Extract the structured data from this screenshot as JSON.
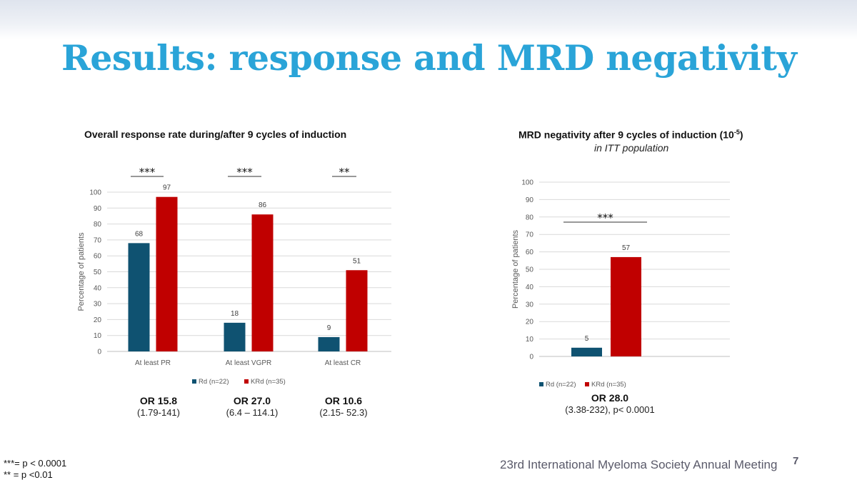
{
  "slide": {
    "title": "Results: response and MRD negativity",
    "footer": "23rd International Myeloma Society Annual Meeting",
    "page_number": "7",
    "footnotes": [
      "***= p < 0.0001",
      "** = p <0.01"
    ]
  },
  "colors": {
    "title": "#2aa4d8",
    "rd": "#0f5271",
    "krd": "#c00000"
  },
  "chart_data": [
    {
      "type": "bar",
      "title": "Overall response rate during/after 9 cycles of induction",
      "ylabel": "Percentage of patients",
      "ylim": [
        0,
        100
      ],
      "yticks": [
        "0",
        "10",
        "20",
        "30",
        "40",
        "50",
        "60",
        "70",
        "80",
        "90",
        "100"
      ],
      "categories": [
        "At least PR",
        "At least VGPR",
        "At least CR"
      ],
      "series": [
        {
          "name": "Rd (n=22)",
          "values": [
            68,
            18,
            9
          ]
        },
        {
          "name": "KRd (n=35)",
          "values": [
            97,
            86,
            51
          ]
        }
      ],
      "data_labels": [
        [
          "68",
          "18",
          "9"
        ],
        [
          "97",
          "86",
          "51"
        ]
      ],
      "significance": [
        "***",
        "***",
        "**"
      ],
      "odds_ratios": [
        {
          "or": "OR 15.8",
          "ci": "(1.79-141)"
        },
        {
          "or": "OR 27.0",
          "ci": "(6.4 – 114.1)"
        },
        {
          "or": "OR 10.6",
          "ci": "(2.15- 52.3)"
        }
      ],
      "legend": "bottom",
      "grid": true
    },
    {
      "type": "bar",
      "title": "MRD negativity after 9 cycles of induction (10",
      "title_sup": "-5",
      "title_end": ")",
      "subtitle": "in ITT population",
      "ylabel": "Percentage of patients",
      "ylim": [
        0,
        100
      ],
      "yticks": [
        "0",
        "10",
        "20",
        "30",
        "40",
        "50",
        "60",
        "70",
        "80",
        "90",
        "100"
      ],
      "categories": [
        ""
      ],
      "series": [
        {
          "name": "Rd (n=22)",
          "values": [
            5
          ]
        },
        {
          "name": "KRd (n=35)",
          "values": [
            57
          ]
        }
      ],
      "data_labels": [
        [
          "5"
        ],
        [
          "57"
        ]
      ],
      "significance": [
        "***"
      ],
      "odds_ratios": [
        {
          "or": "OR 28.0",
          "ci": "(3.38-232), p< 0.0001"
        }
      ],
      "legend": "bottom",
      "grid": true
    }
  ]
}
